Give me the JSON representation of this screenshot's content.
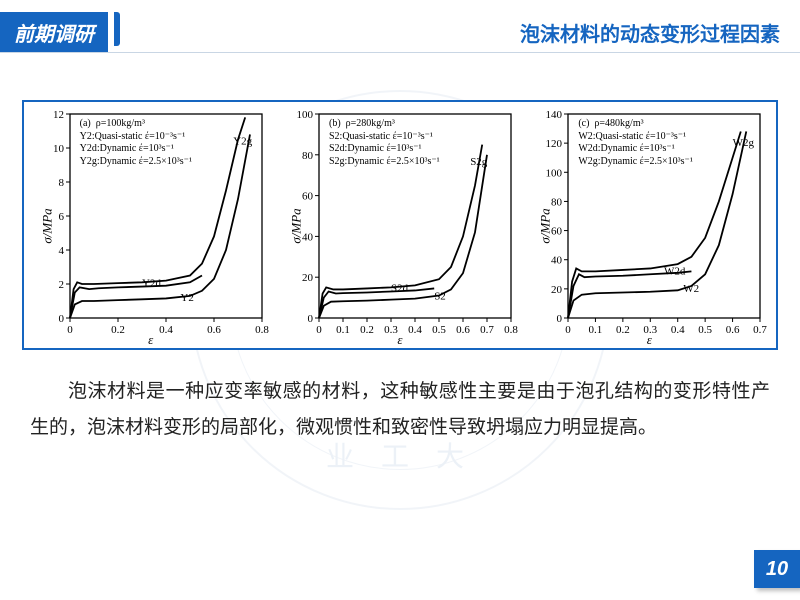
{
  "header": {
    "tab": "前期调研",
    "title": "泡沫材料的动态变形过程因素"
  },
  "watermark": {
    "top_arc": "N  P O L Y T E C H N I",
    "bottom": "业  工  大"
  },
  "charts": {
    "ylabel": "σ/MPa",
    "xlabel": "ε",
    "a": {
      "tag": "(a)",
      "density": "ρ=100kg/m³",
      "lines": [
        "Y2:Quasi-static έ=10⁻³s⁻¹",
        "Y2d:Dynamic έ=10³s⁻¹",
        "Y2g:Dynamic έ=2.5×10³s⁻¹"
      ],
      "ylim": [
        0,
        12
      ],
      "yticks": [
        0,
        2,
        4,
        6,
        8,
        10,
        12
      ],
      "xlim": [
        0,
        0.8
      ],
      "xticks": [
        0,
        0.2,
        0.4,
        0.6,
        0.8
      ],
      "bg": "#ffffff",
      "line_color": "#000000",
      "curves": {
        "Y2": [
          [
            0,
            0
          ],
          [
            0.02,
            0.8
          ],
          [
            0.05,
            1.0
          ],
          [
            0.1,
            1.0
          ],
          [
            0.2,
            1.05
          ],
          [
            0.3,
            1.1
          ],
          [
            0.4,
            1.15
          ],
          [
            0.5,
            1.3
          ],
          [
            0.55,
            1.6
          ],
          [
            0.6,
            2.3
          ],
          [
            0.65,
            4.0
          ],
          [
            0.7,
            7.0
          ],
          [
            0.75,
            10.8
          ]
        ],
        "Y2d": [
          [
            0,
            0
          ],
          [
            0.02,
            1.5
          ],
          [
            0.04,
            1.8
          ],
          [
            0.08,
            1.7
          ],
          [
            0.12,
            1.75
          ],
          [
            0.2,
            1.8
          ],
          [
            0.3,
            1.85
          ],
          [
            0.4,
            1.9
          ],
          [
            0.5,
            2.1
          ],
          [
            0.55,
            2.5
          ]
        ],
        "Y2g": [
          [
            0,
            0
          ],
          [
            0.015,
            1.7
          ],
          [
            0.03,
            2.1
          ],
          [
            0.05,
            2.0
          ],
          [
            0.1,
            2.0
          ],
          [
            0.2,
            2.05
          ],
          [
            0.3,
            2.1
          ],
          [
            0.4,
            2.2
          ],
          [
            0.5,
            2.5
          ],
          [
            0.55,
            3.2
          ],
          [
            0.6,
            4.8
          ],
          [
            0.65,
            7.5
          ],
          [
            0.7,
            10.5
          ],
          [
            0.73,
            11.8
          ]
        ]
      },
      "curve_labels": {
        "Y2": [
          0.46,
          1.0
        ],
        "Y2d": [
          0.3,
          1.85
        ],
        "Y2g": [
          0.68,
          10.2
        ]
      }
    },
    "b": {
      "tag": "(b)",
      "density": "ρ=280kg/m³",
      "lines": [
        "S2:Quasi-static έ=10⁻³s⁻¹",
        "S2d:Dynamic έ=10³s⁻¹",
        "S2g:Dynamic έ=2.5×10³s⁻¹"
      ],
      "ylim": [
        0,
        100
      ],
      "yticks": [
        0,
        20,
        40,
        60,
        80,
        100
      ],
      "xlim": [
        0,
        0.8
      ],
      "xticks": [
        0,
        0.1,
        0.2,
        0.3,
        0.4,
        0.5,
        0.6,
        0.7,
        0.8
      ],
      "bg": "#ffffff",
      "line_color": "#000000",
      "curves": {
        "S2": [
          [
            0,
            0
          ],
          [
            0.02,
            6
          ],
          [
            0.05,
            8
          ],
          [
            0.1,
            8.2
          ],
          [
            0.2,
            8.5
          ],
          [
            0.3,
            9
          ],
          [
            0.4,
            9.5
          ],
          [
            0.5,
            11
          ],
          [
            0.55,
            14
          ],
          [
            0.6,
            22
          ],
          [
            0.65,
            42
          ],
          [
            0.7,
            80
          ]
        ],
        "S2d": [
          [
            0,
            0
          ],
          [
            0.02,
            10
          ],
          [
            0.04,
            13
          ],
          [
            0.07,
            12
          ],
          [
            0.1,
            12.2
          ],
          [
            0.2,
            12.5
          ],
          [
            0.3,
            13
          ],
          [
            0.4,
            13.5
          ],
          [
            0.48,
            14.5
          ]
        ],
        "S2g": [
          [
            0,
            0
          ],
          [
            0.015,
            12
          ],
          [
            0.03,
            15
          ],
          [
            0.06,
            14
          ],
          [
            0.1,
            14
          ],
          [
            0.2,
            14.5
          ],
          [
            0.3,
            15
          ],
          [
            0.4,
            16
          ],
          [
            0.5,
            19
          ],
          [
            0.55,
            25
          ],
          [
            0.6,
            40
          ],
          [
            0.65,
            65
          ],
          [
            0.68,
            85
          ]
        ]
      },
      "curve_labels": {
        "S2": [
          0.48,
          9
        ],
        "S2d": [
          0.3,
          13
        ],
        "S2g": [
          0.63,
          75
        ]
      }
    },
    "c": {
      "tag": "(c)",
      "density": "ρ=480kg/m³",
      "lines": [
        "W2:Quasi-static έ=10⁻³s⁻¹",
        "W2d:Dynamic έ=10³s⁻¹",
        "W2g:Dynamic έ=2.5×10³s⁻¹"
      ],
      "ylim": [
        0,
        140
      ],
      "yticks": [
        0,
        20,
        40,
        60,
        80,
        100,
        120,
        140
      ],
      "xlim": [
        0,
        0.7
      ],
      "xticks": [
        0,
        0.1,
        0.2,
        0.3,
        0.4,
        0.5,
        0.6,
        0.7
      ],
      "bg": "#ffffff",
      "line_color": "#000000",
      "curves": {
        "W2": [
          [
            0,
            0
          ],
          [
            0.02,
            12
          ],
          [
            0.05,
            16
          ],
          [
            0.1,
            17
          ],
          [
            0.2,
            17.5
          ],
          [
            0.3,
            18
          ],
          [
            0.4,
            19
          ],
          [
            0.45,
            22
          ],
          [
            0.5,
            30
          ],
          [
            0.55,
            50
          ],
          [
            0.6,
            85
          ],
          [
            0.65,
            128
          ]
        ],
        "W2d": [
          [
            0,
            0
          ],
          [
            0.02,
            22
          ],
          [
            0.04,
            30
          ],
          [
            0.06,
            28
          ],
          [
            0.1,
            28.5
          ],
          [
            0.2,
            29
          ],
          [
            0.3,
            30
          ],
          [
            0.4,
            31
          ],
          [
            0.45,
            32
          ]
        ],
        "W2g": [
          [
            0,
            0
          ],
          [
            0.015,
            25
          ],
          [
            0.03,
            34
          ],
          [
            0.05,
            32
          ],
          [
            0.1,
            32
          ],
          [
            0.2,
            33
          ],
          [
            0.3,
            34
          ],
          [
            0.4,
            37
          ],
          [
            0.45,
            42
          ],
          [
            0.5,
            55
          ],
          [
            0.55,
            80
          ],
          [
            0.6,
            110
          ],
          [
            0.63,
            128
          ]
        ]
      },
      "curve_labels": {
        "W2": [
          0.42,
          18
        ],
        "W2d": [
          0.35,
          30
        ],
        "W2g": [
          0.6,
          118
        ]
      }
    }
  },
  "paragraph": "泡沫材料是一种应变率敏感的材料，这种敏感性主要是由于泡孔结构的变形特性产生的，泡沫材料变形的局部化，微观惯性和致密性导致坍塌应力明显提高。",
  "page_number": "10",
  "colors": {
    "accent": "#1565c0",
    "text": "#222222",
    "border": "#1565c0"
  }
}
